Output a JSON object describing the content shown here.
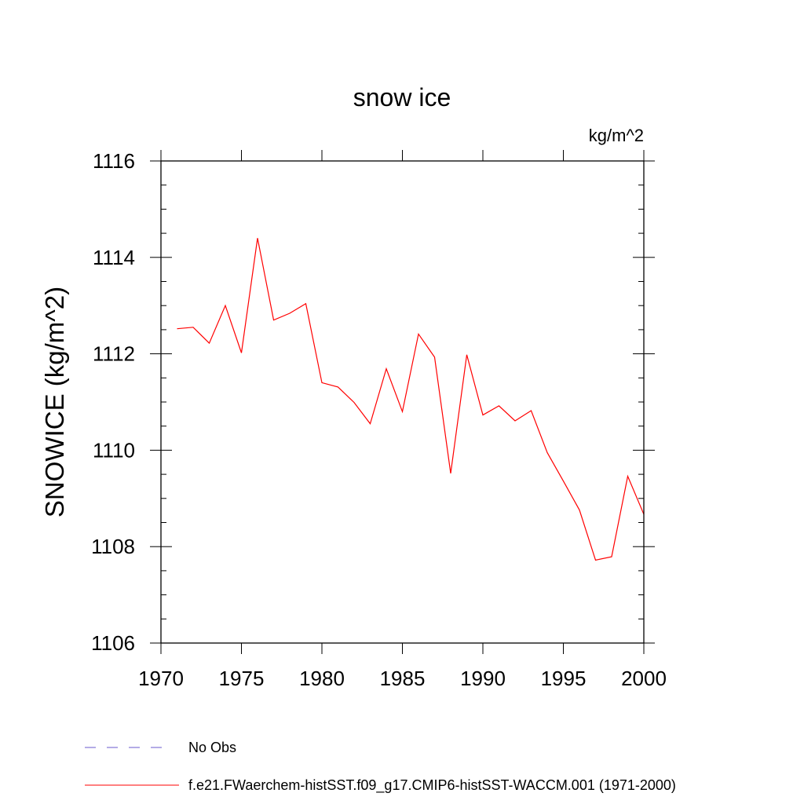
{
  "chart_data": {
    "type": "line",
    "title": "snow ice",
    "units": "kg/m^2",
    "ylabel": "SNOWICE  (kg/m^2)",
    "xlabel": "",
    "xlim": [
      1970,
      2000
    ],
    "ylim": [
      1106,
      1116
    ],
    "x_ticks": [
      1970,
      1975,
      1980,
      1985,
      1990,
      1995,
      2000
    ],
    "x_tick_labels": [
      "1970",
      "1975",
      "1980",
      "1985",
      "1990",
      "1995",
      "2000"
    ],
    "y_ticks": [
      1106,
      1108,
      1110,
      1112,
      1114,
      1116
    ],
    "y_tick_labels": [
      "1106",
      "1108",
      "1110",
      "1112",
      "1114",
      "1116"
    ],
    "y_minor_step": 0.5,
    "x_minor_step": 1,
    "grid": false,
    "legend_position": "bottom",
    "series": [
      {
        "name": "f.e21.FWaerchem-histSST.f09_g17.CMIP6-histSST-WACCM.001 (1971-2000)",
        "color": "#ff0000",
        "style": "solid",
        "x": [
          1971,
          1972,
          1973,
          1974,
          1975,
          1976,
          1977,
          1978,
          1979,
          1980,
          1981,
          1982,
          1983,
          1984,
          1985,
          1986,
          1987,
          1988,
          1989,
          1990,
          1991,
          1992,
          1993,
          1994,
          1995,
          1996,
          1997,
          1998,
          1999,
          2000
        ],
        "values": [
          1112.52,
          1112.55,
          1112.22,
          1113.0,
          1112.02,
          1114.4,
          1112.7,
          1112.84,
          1113.04,
          1111.4,
          1111.31,
          1110.99,
          1110.55,
          1111.69,
          1110.8,
          1112.41,
          1111.93,
          1109.52,
          1111.98,
          1110.73,
          1110.92,
          1110.61,
          1110.82,
          1109.95,
          1109.36,
          1108.76,
          1107.72,
          1107.79,
          1109.46,
          1108.67
        ]
      }
    ],
    "legend": [
      {
        "label": "No Obs",
        "color": "#6a5acd",
        "style": "dashed"
      },
      {
        "label": "f.e21.FWaerchem-histSST.f09_g17.CMIP6-histSST-WACCM.001 (1971-2000)",
        "color": "#ff0000",
        "style": "solid"
      }
    ]
  }
}
